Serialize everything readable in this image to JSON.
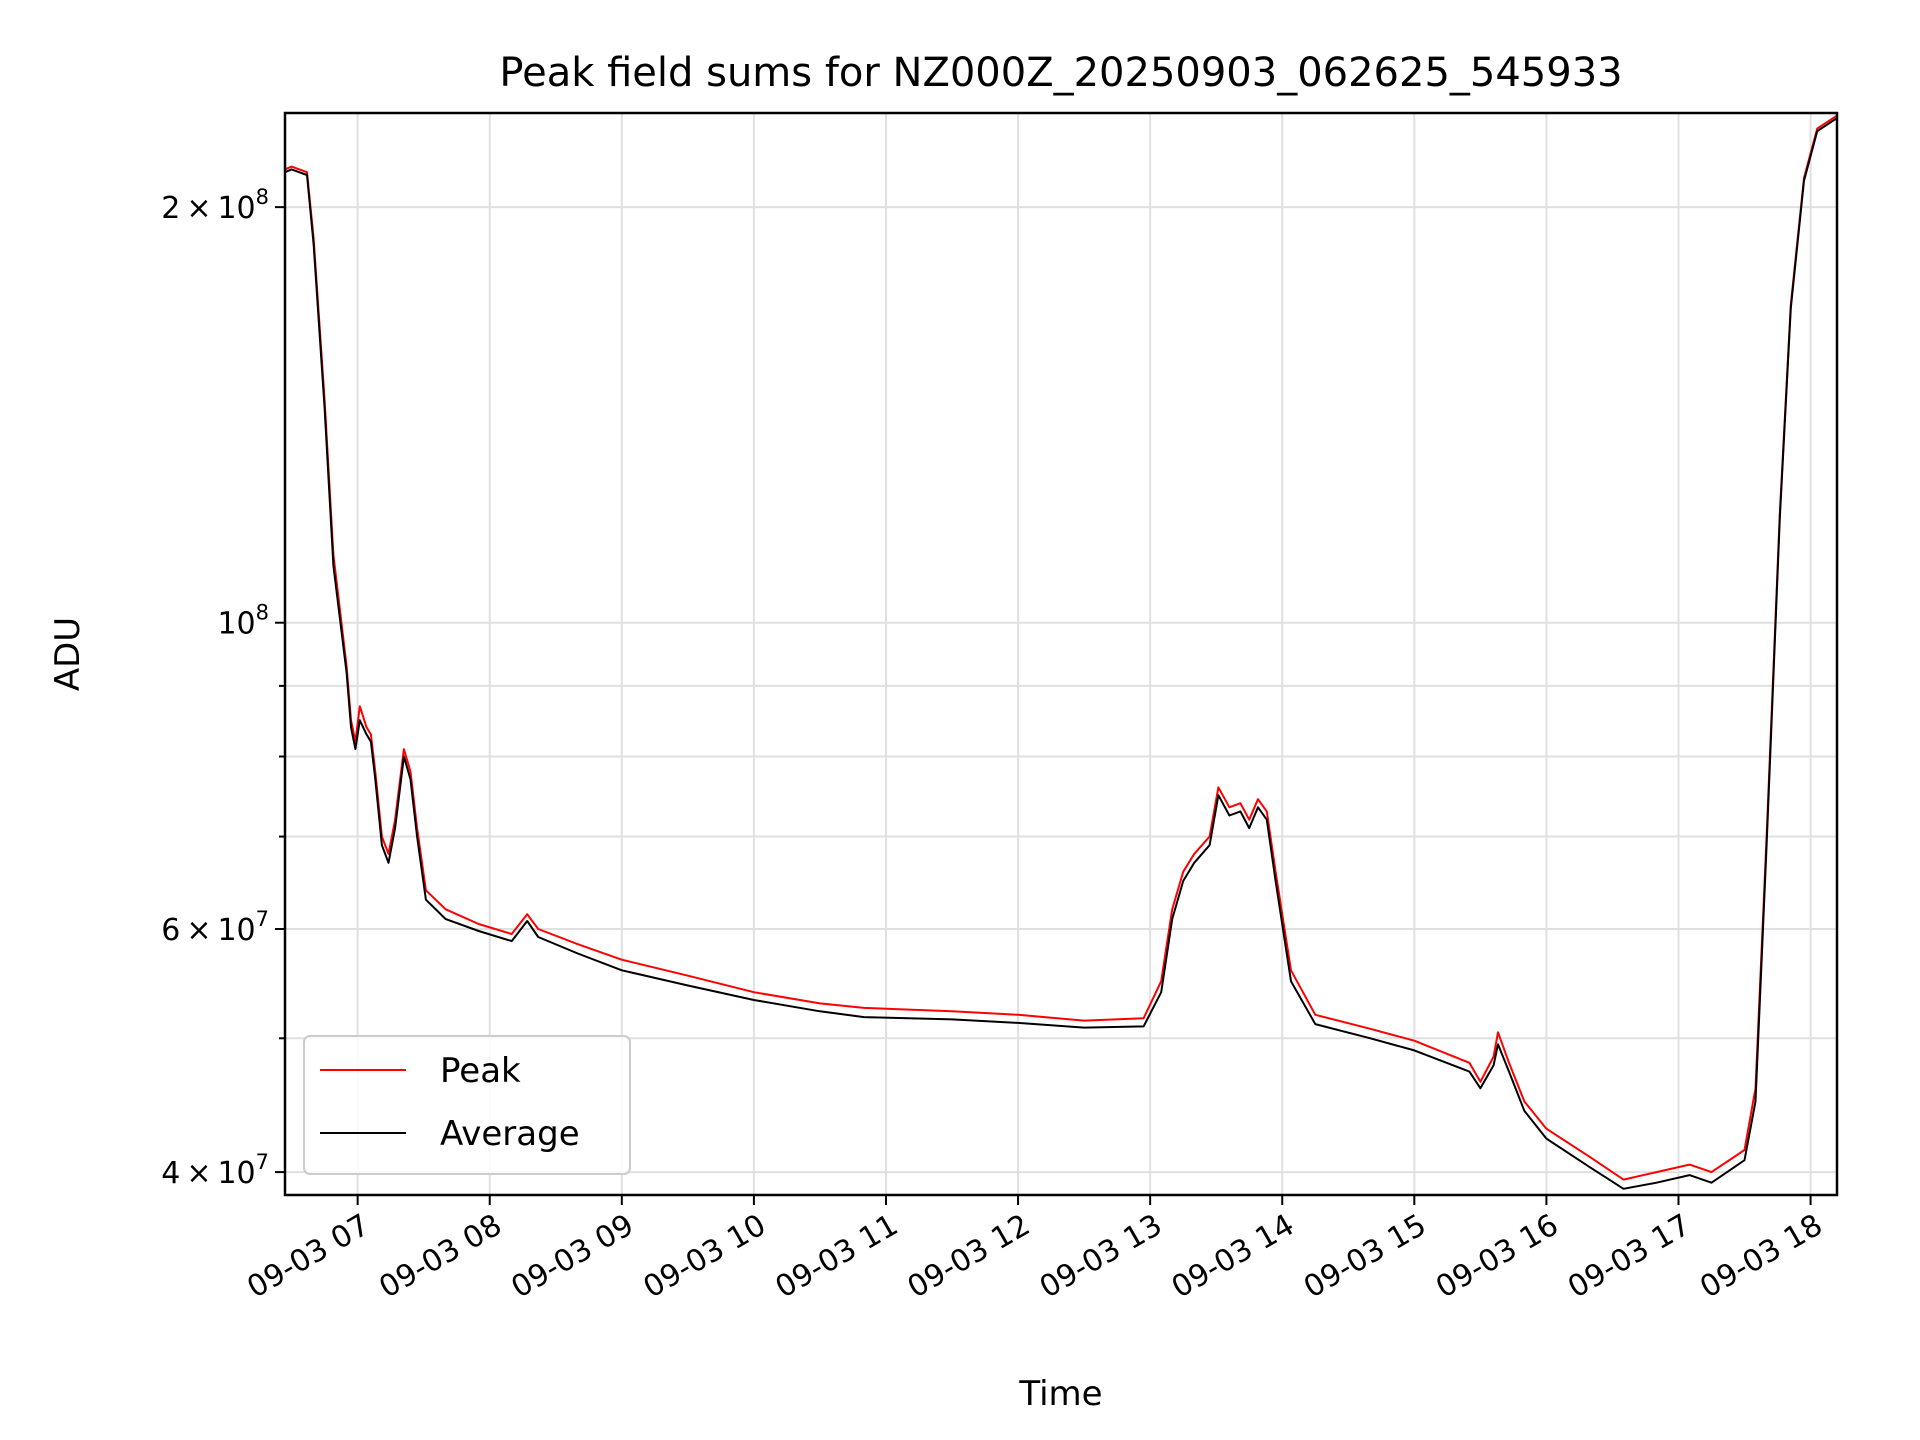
{
  "chart_data": {
    "type": "line",
    "title": "Peak field sums for NZ000Z_20250903_062625_545933",
    "xlabel": "Time",
    "ylabel": "ADU",
    "y_scale": "log",
    "ylim": [
      38500000,
      234000000
    ],
    "xlim": [
      "2025-09-03 06:27",
      "2025-09-03 18:12"
    ],
    "grid": true,
    "legend_position": "lower-left",
    "x_ticks": [
      {
        "t": "2025-09-03 07:00",
        "label": "09-03 07"
      },
      {
        "t": "2025-09-03 08:00",
        "label": "09-03 08"
      },
      {
        "t": "2025-09-03 09:00",
        "label": "09-03 09"
      },
      {
        "t": "2025-09-03 10:00",
        "label": "09-03 10"
      },
      {
        "t": "2025-09-03 11:00",
        "label": "09-03 11"
      },
      {
        "t": "2025-09-03 12:00",
        "label": "09-03 12"
      },
      {
        "t": "2025-09-03 13:00",
        "label": "09-03 13"
      },
      {
        "t": "2025-09-03 14:00",
        "label": "09-03 14"
      },
      {
        "t": "2025-09-03 15:00",
        "label": "09-03 15"
      },
      {
        "t": "2025-09-03 16:00",
        "label": "09-03 16"
      },
      {
        "t": "2025-09-03 17:00",
        "label": "09-03 17"
      },
      {
        "t": "2025-09-03 18:00",
        "label": "09-03 18"
      }
    ],
    "y_ticks_major": [
      {
        "value": 40000000,
        "mant": "4",
        "exp": "7"
      },
      {
        "value": 60000000,
        "mant": "6",
        "exp": "7"
      },
      {
        "value": 100000000,
        "mant": "",
        "exp": "8"
      },
      {
        "value": 200000000,
        "mant": "2",
        "exp": "8"
      }
    ],
    "y_ticks_minor": [
      50000000,
      70000000,
      80000000,
      90000000
    ],
    "series": [
      {
        "name": "Peak",
        "color": "#ff0000",
        "points": [
          [
            "2025-09-03 06:27",
            213000000
          ],
          [
            "2025-09-03 06:30",
            214000000
          ],
          [
            "2025-09-03 06:37",
            212000000
          ],
          [
            "2025-09-03 06:40",
            190000000
          ],
          [
            "2025-09-03 06:45",
            145000000
          ],
          [
            "2025-09-03 06:49",
            112000000
          ],
          [
            "2025-09-03 06:55",
            93000000
          ],
          [
            "2025-09-03 06:57",
            85000000
          ],
          [
            "2025-09-03 06:59",
            82000000
          ],
          [
            "2025-09-03 07:01",
            87000000
          ],
          [
            "2025-09-03 07:04",
            84000000
          ],
          [
            "2025-09-03 07:06",
            83000000
          ],
          [
            "2025-09-03 07:08",
            78000000
          ],
          [
            "2025-09-03 07:11",
            70000000
          ],
          [
            "2025-09-03 07:14",
            68000000
          ],
          [
            "2025-09-03 07:17",
            72000000
          ],
          [
            "2025-09-03 07:21",
            81000000
          ],
          [
            "2025-09-03 07:24",
            78000000
          ],
          [
            "2025-09-03 07:27",
            71000000
          ],
          [
            "2025-09-03 07:31",
            64000000
          ],
          [
            "2025-09-03 07:40",
            62000000
          ],
          [
            "2025-09-03 07:55",
            60500000
          ],
          [
            "2025-09-03 08:10",
            59500000
          ],
          [
            "2025-09-03 08:17",
            61500000
          ],
          [
            "2025-09-03 08:22",
            60000000
          ],
          [
            "2025-09-03 08:40",
            58500000
          ],
          [
            "2025-09-03 09:00",
            57000000
          ],
          [
            "2025-09-03 09:30",
            55500000
          ],
          [
            "2025-09-03 10:00",
            54000000
          ],
          [
            "2025-09-03 10:30",
            53000000
          ],
          [
            "2025-09-03 10:50",
            52600000
          ],
          [
            "2025-09-03 11:30",
            52300000
          ],
          [
            "2025-09-03 12:00",
            52000000
          ],
          [
            "2025-09-03 12:30",
            51500000
          ],
          [
            "2025-09-03 12:57",
            51700000
          ],
          [
            "2025-09-03 13:05",
            55000000
          ],
          [
            "2025-09-03 13:10",
            62000000
          ],
          [
            "2025-09-03 13:15",
            66000000
          ],
          [
            "2025-09-03 13:20",
            68000000
          ],
          [
            "2025-09-03 13:27",
            70000000
          ],
          [
            "2025-09-03 13:31",
            76000000
          ],
          [
            "2025-09-03 13:36",
            73500000
          ],
          [
            "2025-09-03 13:41",
            74000000
          ],
          [
            "2025-09-03 13:45",
            72000000
          ],
          [
            "2025-09-03 13:49",
            74500000
          ],
          [
            "2025-09-03 13:53",
            73000000
          ],
          [
            "2025-09-03 13:57",
            66000000
          ],
          [
            "2025-09-03 14:04",
            56000000
          ],
          [
            "2025-09-03 14:15",
            52000000
          ],
          [
            "2025-09-03 14:40",
            50800000
          ],
          [
            "2025-09-03 15:00",
            49800000
          ],
          [
            "2025-09-03 15:25",
            48000000
          ],
          [
            "2025-09-03 15:30",
            46500000
          ],
          [
            "2025-09-03 15:36",
            48500000
          ],
          [
            "2025-09-03 15:38",
            50500000
          ],
          [
            "2025-09-03 15:43",
            48000000
          ],
          [
            "2025-09-03 15:50",
            45000000
          ],
          [
            "2025-09-03 16:00",
            43000000
          ],
          [
            "2025-09-03 16:20",
            41000000
          ],
          [
            "2025-09-03 16:35",
            39500000
          ],
          [
            "2025-09-03 16:50",
            40000000
          ],
          [
            "2025-09-03 17:05",
            40500000
          ],
          [
            "2025-09-03 17:15",
            40000000
          ],
          [
            "2025-09-03 17:30",
            41500000
          ],
          [
            "2025-09-03 17:35",
            46000000
          ],
          [
            "2025-09-03 17:40",
            70000000
          ],
          [
            "2025-09-03 17:46",
            120000000
          ],
          [
            "2025-09-03 17:51",
            170000000
          ],
          [
            "2025-09-03 17:57",
            210000000
          ],
          [
            "2025-09-03 18:03",
            228000000
          ],
          [
            "2025-09-03 18:12",
            233000000
          ]
        ]
      },
      {
        "name": "Average",
        "color": "#000000",
        "points": [
          [
            "2025-09-03 06:27",
            212000000
          ],
          [
            "2025-09-03 06:30",
            213000000
          ],
          [
            "2025-09-03 06:37",
            211000000
          ],
          [
            "2025-09-03 06:40",
            188000000
          ],
          [
            "2025-09-03 06:45",
            143000000
          ],
          [
            "2025-09-03 06:49",
            110000000
          ],
          [
            "2025-09-03 06:55",
            92000000
          ],
          [
            "2025-09-03 06:57",
            84000000
          ],
          [
            "2025-09-03 06:59",
            81000000
          ],
          [
            "2025-09-03 07:01",
            85000000
          ],
          [
            "2025-09-03 07:04",
            83000000
          ],
          [
            "2025-09-03 07:06",
            82000000
          ],
          [
            "2025-09-03 07:08",
            77000000
          ],
          [
            "2025-09-03 07:11",
            69000000
          ],
          [
            "2025-09-03 07:14",
            67000000
          ],
          [
            "2025-09-03 07:17",
            71000000
          ],
          [
            "2025-09-03 07:21",
            80000000
          ],
          [
            "2025-09-03 07:24",
            77000000
          ],
          [
            "2025-09-03 07:27",
            70000000
          ],
          [
            "2025-09-03 07:31",
            63000000
          ],
          [
            "2025-09-03 07:40",
            61000000
          ],
          [
            "2025-09-03 07:55",
            59800000
          ],
          [
            "2025-09-03 08:10",
            58800000
          ],
          [
            "2025-09-03 08:17",
            60800000
          ],
          [
            "2025-09-03 08:22",
            59200000
          ],
          [
            "2025-09-03 08:40",
            57600000
          ],
          [
            "2025-09-03 09:00",
            56000000
          ],
          [
            "2025-09-03 09:30",
            54600000
          ],
          [
            "2025-09-03 10:00",
            53300000
          ],
          [
            "2025-09-03 10:30",
            52300000
          ],
          [
            "2025-09-03 10:50",
            51800000
          ],
          [
            "2025-09-03 11:30",
            51600000
          ],
          [
            "2025-09-03 12:00",
            51300000
          ],
          [
            "2025-09-03 12:30",
            50900000
          ],
          [
            "2025-09-03 12:57",
            51000000
          ],
          [
            "2025-09-03 13:05",
            54000000
          ],
          [
            "2025-09-03 13:10",
            61000000
          ],
          [
            "2025-09-03 13:15",
            65000000
          ],
          [
            "2025-09-03 13:20",
            67000000
          ],
          [
            "2025-09-03 13:27",
            69000000
          ],
          [
            "2025-09-03 13:31",
            75000000
          ],
          [
            "2025-09-03 13:36",
            72500000
          ],
          [
            "2025-09-03 13:41",
            73000000
          ],
          [
            "2025-09-03 13:45",
            71000000
          ],
          [
            "2025-09-03 13:49",
            73500000
          ],
          [
            "2025-09-03 13:53",
            72000000
          ],
          [
            "2025-09-03 13:57",
            65000000
          ],
          [
            "2025-09-03 14:04",
            55000000
          ],
          [
            "2025-09-03 14:15",
            51200000
          ],
          [
            "2025-09-03 14:40",
            50000000
          ],
          [
            "2025-09-03 15:00",
            49000000
          ],
          [
            "2025-09-03 15:25",
            47300000
          ],
          [
            "2025-09-03 15:30",
            46000000
          ],
          [
            "2025-09-03 15:36",
            47800000
          ],
          [
            "2025-09-03 15:38",
            49500000
          ],
          [
            "2025-09-03 15:43",
            47300000
          ],
          [
            "2025-09-03 15:50",
            44300000
          ],
          [
            "2025-09-03 16:00",
            42300000
          ],
          [
            "2025-09-03 16:20",
            40300000
          ],
          [
            "2025-09-03 16:35",
            38900000
          ],
          [
            "2025-09-03 16:50",
            39300000
          ],
          [
            "2025-09-03 17:05",
            39800000
          ],
          [
            "2025-09-03 17:15",
            39300000
          ],
          [
            "2025-09-03 17:30",
            40800000
          ],
          [
            "2025-09-03 17:35",
            45000000
          ],
          [
            "2025-09-03 17:40",
            69000000
          ],
          [
            "2025-09-03 17:46",
            119000000
          ],
          [
            "2025-09-03 17:51",
            169000000
          ],
          [
            "2025-09-03 17:57",
            209000000
          ],
          [
            "2025-09-03 18:03",
            227000000
          ],
          [
            "2025-09-03 18:12",
            232000000
          ]
        ]
      }
    ]
  }
}
